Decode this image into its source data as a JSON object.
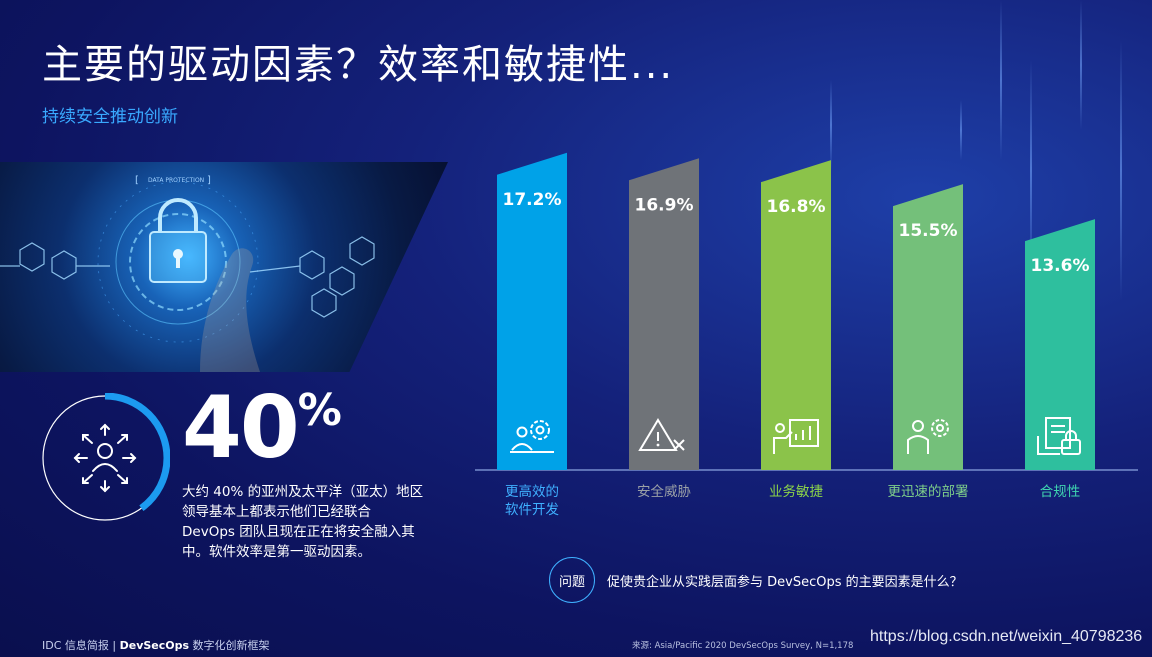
{
  "title": "主要的驱动因素？效率和敏捷性...",
  "subtitle": "持续安全推动创新",
  "hero": {
    "banner_text": "DATA PROTECTION"
  },
  "stat": {
    "value": "40",
    "unit": "%",
    "ring_fraction": 0.4,
    "description": "大约 40% 的亚州及太平洋（亚太）地区领导基本上都表示他们已经联合 DevOps 团队且现在正在将安全融入其中。软件效率是第一驱动因素。"
  },
  "chart_data": {
    "type": "bar",
    "categories": [
      "更高效的\n软件开发",
      "安全威胁",
      "业务敏捷",
      "更迅速的部署",
      "合规性"
    ],
    "values": [
      17.2,
      16.9,
      16.8,
      15.5,
      13.6
    ],
    "value_labels": [
      "17.2%",
      "16.9%",
      "16.8%",
      "15.5%",
      "13.6%"
    ],
    "colors": [
      "#00a2e8",
      "#6f7378",
      "#8bc34a",
      "#74c07a",
      "#2ebf9e"
    ],
    "label_colors": [
      "#3fb0ff",
      "#9aa0a6",
      "#8bd34a",
      "#7fd08a",
      "#3fd4b0"
    ],
    "icons": [
      "developer-gears-icon",
      "warning-triangle-icon",
      "presentation-chart-icon",
      "person-gear-icon",
      "locked-document-icon"
    ],
    "ylim": [
      0,
      18
    ]
  },
  "question": {
    "badge": "问题",
    "text": "促使贵企业从实践层面参与 DevSecOps 的主要因素是什么？"
  },
  "footer": {
    "left_prefix": "IDC 信息简报 |",
    "left_bold": "DevSecOps",
    "left_suffix": "数字化创新框架",
    "source": "来源: Asia/Pacific 2020 DevSecOps Survey, N=1,178"
  },
  "watermark": "https://blog.csdn.net/weixin_40798236"
}
